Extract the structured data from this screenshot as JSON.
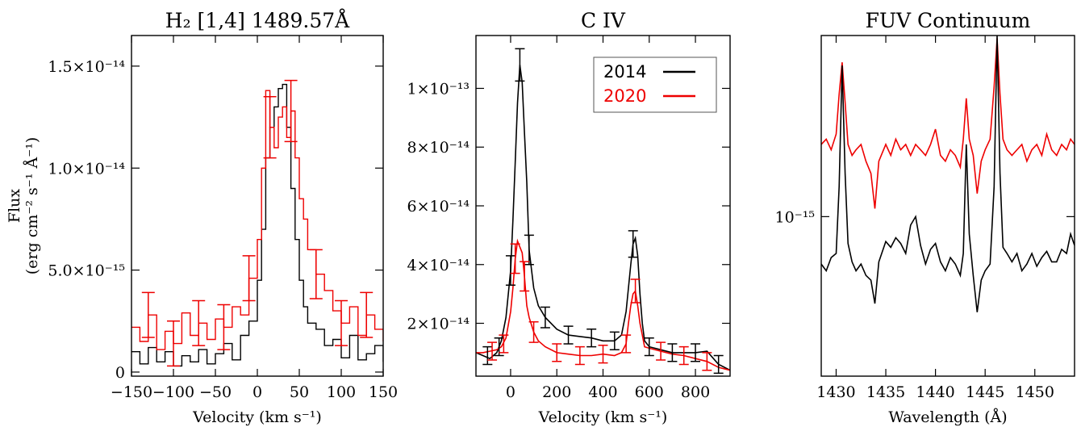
{
  "figure": {
    "ylabel_main": "Flux",
    "ylabel_units": "(erg cm⁻² s⁻¹ Å⁻¹)"
  },
  "chart_data": [
    {
      "type": "line",
      "title": "H₂ [1,4] 1489.57Å",
      "xlabel": "Velocity (km s⁻¹)",
      "ylabel": "Flux (erg cm⁻² s⁻¹ Å⁻¹)",
      "xlim": [
        -150,
        150
      ],
      "ylim": [
        -2e-16,
        1.65e-14
      ],
      "yscale": "linear",
      "xticks": [
        -150,
        -100,
        -50,
        0,
        50,
        100,
        150
      ],
      "xticklabels": [
        "−150",
        "−100",
        "−50",
        "0",
        "50",
        "100",
        "150"
      ],
      "yticks": [
        0,
        5e-15,
        1e-14,
        1.5e-14
      ],
      "yticklabels": [
        "0",
        "5.0×10⁻¹⁵",
        "1.0×10⁻¹⁴",
        "1.5×10⁻¹⁴"
      ],
      "series": [
        {
          "name": "2014",
          "color": "#000000",
          "style": "step",
          "x": [
            -150,
            -140,
            -130,
            -120,
            -110,
            -100,
            -90,
            -80,
            -70,
            -60,
            -50,
            -40,
            -30,
            -20,
            -10,
            0,
            5,
            10,
            15,
            20,
            25,
            30,
            35,
            40,
            45,
            50,
            55,
            60,
            70,
            80,
            90,
            100,
            110,
            120,
            130,
            140,
            150
          ],
          "y": [
            1e-15,
            4e-16,
            1.2e-15,
            5e-16,
            1e-15,
            3e-16,
            8e-16,
            5e-16,
            1.1e-15,
            4e-16,
            9e-16,
            1.4e-15,
            6e-16,
            1.8e-15,
            2.5e-15,
            4.5e-15,
            7e-15,
            1.05e-14,
            1.2e-14,
            1.3e-14,
            1.39e-14,
            1.41e-14,
            1.2e-14,
            9e-15,
            6.5e-15,
            4.5e-15,
            3.2e-15,
            2.4e-15,
            2.1e-15,
            1.3e-15,
            1.6e-15,
            7e-16,
            1.8e-15,
            6e-16,
            9e-16,
            1.3e-15,
            5e-16
          ]
        },
        {
          "name": "2020",
          "color": "#ee0000",
          "style": "step",
          "x": [
            -150,
            -140,
            -130,
            -120,
            -110,
            -100,
            -90,
            -80,
            -70,
            -60,
            -50,
            -40,
            -30,
            -20,
            -10,
            0,
            5,
            10,
            15,
            20,
            25,
            30,
            35,
            40,
            45,
            50,
            55,
            60,
            70,
            80,
            90,
            100,
            110,
            120,
            130,
            140,
            150
          ],
          "y": [
            2.2e-15,
            1.5e-15,
            2.8e-15,
            1.1e-15,
            2e-15,
            1.4e-15,
            2.9e-15,
            1.8e-15,
            2.4e-15,
            1.6e-15,
            2.6e-15,
            2.2e-15,
            3.2e-15,
            2.8e-15,
            4.6e-15,
            6.5e-15,
            1e-14,
            1.38e-14,
            1.2e-14,
            1.1e-14,
            1.25e-14,
            1.3e-14,
            1.15e-14,
            1.28e-14,
            1.05e-14,
            8.5e-15,
            7.5e-15,
            6e-15,
            4.8e-15,
            4e-15,
            3e-15,
            2.4e-15,
            3.2e-15,
            1.8e-15,
            2.8e-15,
            2.1e-15,
            1.5e-15
          ]
        }
      ],
      "errorbars": [
        {
          "series": "2020",
          "x": [
            -130,
            -100,
            -70,
            -40,
            -10,
            15,
            40,
            70,
            100,
            130
          ],
          "y": [
            2.8e-15,
            1.4e-15,
            2.4e-15,
            2.2e-15,
            4.6e-15,
            1.2e-14,
            1.28e-14,
            4.8e-15,
            2.4e-15,
            2.8e-15
          ],
          "err": [
            1.1e-15,
            1.1e-15,
            1.1e-15,
            1.1e-15,
            1.1e-15,
            1.5e-15,
            1.5e-15,
            1.2e-15,
            1.1e-15,
            1.1e-15
          ]
        }
      ]
    },
    {
      "type": "line",
      "title": "C IV",
      "xlabel": "Velocity (km s⁻¹)",
      "ylabel": "",
      "xlim": [
        -150,
        950
      ],
      "ylim": [
        2e-15,
        1.18e-13
      ],
      "yscale": "linear",
      "xticks": [
        0,
        200,
        400,
        600,
        800
      ],
      "xticklabels": [
        "0",
        "200",
        "400",
        "600",
        "800"
      ],
      "yticks": [
        2e-14,
        4e-14,
        6e-14,
        8e-14,
        1e-13
      ],
      "yticklabels": [
        "2×10⁻¹⁴",
        "4×10⁻¹⁴",
        "6×10⁻¹⁴",
        "8×10⁻¹⁴",
        "1×10⁻¹³"
      ],
      "legend": {
        "position": "top-right",
        "entries": [
          {
            "label": "2014",
            "color": "#000000"
          },
          {
            "label": "2020",
            "color": "#ee0000"
          }
        ]
      },
      "series": [
        {
          "name": "2014",
          "color": "#000000",
          "style": "line",
          "x": [
            -150,
            -120,
            -90,
            -60,
            -40,
            -20,
            0,
            10,
            20,
            30,
            40,
            50,
            60,
            70,
            80,
            100,
            120,
            150,
            200,
            250,
            300,
            350,
            400,
            450,
            480,
            500,
            510,
            520,
            530,
            540,
            550,
            560,
            570,
            580,
            600,
            650,
            700,
            750,
            800,
            850,
            900,
            950
          ],
          "y": [
            1e-14,
            9e-15,
            8e-15,
            1e-14,
            1.4e-14,
            2.2e-14,
            3.8e-14,
            5.5e-14,
            7.5e-14,
            9.5e-14,
            1.08e-13,
            1.02e-13,
            8.5e-14,
            6.8e-14,
            4.5e-14,
            3.2e-14,
            2.6e-14,
            2.2e-14,
            1.8e-14,
            1.6e-14,
            1.55e-14,
            1.5e-14,
            1.4e-14,
            1.4e-14,
            1.6e-14,
            2.4e-14,
            3.2e-14,
            4e-14,
            4.7e-14,
            4.9e-14,
            4.3e-14,
            3e-14,
            2e-14,
            1.4e-14,
            1.2e-14,
            1.1e-14,
            1e-14,
            1e-14,
            1e-14,
            1.05e-14,
            6e-15,
            4e-15
          ]
        },
        {
          "name": "2020",
          "color": "#ee0000",
          "style": "line",
          "x": [
            -150,
            -120,
            -90,
            -60,
            -40,
            -20,
            0,
            10,
            20,
            30,
            40,
            50,
            60,
            70,
            80,
            100,
            120,
            150,
            200,
            250,
            300,
            350,
            400,
            450,
            480,
            500,
            510,
            520,
            530,
            540,
            550,
            560,
            570,
            580,
            600,
            650,
            700,
            750,
            800,
            850,
            900,
            950
          ],
          "y": [
            1e-14,
            1e-14,
            1.05e-14,
            1.1e-14,
            1.2e-14,
            1.5e-14,
            2.4e-14,
            3.2e-14,
            4.2e-14,
            4.8e-14,
            4.6e-14,
            4.4e-14,
            3.6e-14,
            2.6e-14,
            2.2e-14,
            1.7e-14,
            1.4e-14,
            1.2e-14,
            1e-14,
            9.5e-15,
            9e-15,
            9e-15,
            9.5e-15,
            9e-15,
            1e-14,
            1.3e-14,
            2e-14,
            2.6e-14,
            3e-14,
            3.1e-14,
            2.6e-14,
            2e-14,
            1.6e-14,
            1.2e-14,
            1.15e-14,
            1.05e-14,
            9.5e-15,
            9e-15,
            8e-15,
            7e-15,
            5e-15,
            4e-15
          ]
        }
      ],
      "errorbars": [
        {
          "series": "2014",
          "x": [
            -100,
            -50,
            0,
            40,
            80,
            150,
            250,
            350,
            450,
            530,
            600,
            700,
            800,
            900
          ],
          "y": [
            9e-15,
            1.2e-14,
            3.8e-14,
            1.08e-13,
            4.5e-14,
            2.2e-14,
            1.6e-14,
            1.5e-14,
            1.4e-14,
            4.7e-14,
            1.2e-14,
            1e-14,
            1e-14,
            6e-15
          ],
          "err": [
            3e-15,
            3e-15,
            5e-15,
            5.5e-15,
            5e-15,
            3.5e-15,
            3e-15,
            3e-15,
            3e-15,
            4.5e-15,
            3e-15,
            3e-15,
            3e-15,
            3e-15
          ]
        },
        {
          "series": "2020",
          "x": [
            -80,
            -30,
            20,
            60,
            100,
            200,
            300,
            400,
            500,
            540,
            650,
            750,
            850
          ],
          "y": [
            1.05e-14,
            1.3e-14,
            4.2e-14,
            3.6e-14,
            1.7e-14,
            1e-14,
            9e-15,
            9.5e-15,
            1.3e-14,
            3.1e-14,
            1.05e-14,
            9e-15,
            7e-15
          ],
          "err": [
            3e-15,
            3e-15,
            5e-15,
            5e-15,
            3.5e-15,
            3e-15,
            3e-15,
            3e-15,
            3e-15,
            4e-15,
            3e-15,
            3e-15,
            3e-15
          ]
        }
      ]
    },
    {
      "type": "line",
      "title": "FUV Continuum",
      "xlabel": "Wavelength (Å)",
      "ylabel": "",
      "xlim": [
        1428.5,
        1454
      ],
      "ylim": [
        3.8e-16,
        3e-15
      ],
      "yscale": "log",
      "xticks": [
        1430,
        1435,
        1440,
        1445,
        1450
      ],
      "xticklabels": [
        "1430",
        "1435",
        "1440",
        "1445",
        "1450"
      ],
      "yticks": [
        1e-15
      ],
      "yticklabels": [
        "10⁻¹⁵"
      ],
      "series": [
        {
          "name": "2020",
          "color": "#ee0000",
          "style": "line",
          "x": [
            1428.5,
            1429,
            1429.5,
            1430,
            1430.3,
            1430.6,
            1430.9,
            1431.2,
            1431.6,
            1432,
            1432.5,
            1433,
            1433.5,
            1433.9,
            1434.3,
            1435,
            1435.5,
            1436,
            1436.5,
            1437,
            1437.5,
            1438,
            1438.5,
            1439,
            1439.5,
            1440,
            1440.5,
            1441,
            1441.5,
            1442,
            1442.5,
            1442.8,
            1443.1,
            1443.4,
            1443.8,
            1444.2,
            1444.6,
            1445,
            1445.5,
            1445.9,
            1446.2,
            1446.5,
            1446.8,
            1447.2,
            1447.7,
            1448.2,
            1448.7,
            1449.2,
            1449.7,
            1450.2,
            1450.7,
            1451.2,
            1451.7,
            1452.2,
            1452.7,
            1453.2,
            1453.6,
            1454
          ],
          "y": [
            1.55e-15,
            1.6e-15,
            1.5e-15,
            1.65e-15,
            2.1e-15,
            2.55e-15,
            2e-15,
            1.55e-15,
            1.45e-15,
            1.5e-15,
            1.55e-15,
            1.4e-15,
            1.3e-15,
            1.05e-15,
            1.4e-15,
            1.55e-15,
            1.45e-15,
            1.6e-15,
            1.5e-15,
            1.55e-15,
            1.45e-15,
            1.55e-15,
            1.5e-15,
            1.45e-15,
            1.55e-15,
            1.7e-15,
            1.45e-15,
            1.4e-15,
            1.5e-15,
            1.45e-15,
            1.35e-15,
            1.6e-15,
            2.05e-15,
            1.6e-15,
            1.45e-15,
            1.15e-15,
            1.4e-15,
            1.5e-15,
            1.6e-15,
            2.2e-15,
            2.95e-15,
            2.1e-15,
            1.6e-15,
            1.5e-15,
            1.45e-15,
            1.5e-15,
            1.55e-15,
            1.4e-15,
            1.5e-15,
            1.55e-15,
            1.45e-15,
            1.65e-15,
            1.5e-15,
            1.45e-15,
            1.55e-15,
            1.5e-15,
            1.6e-15,
            1.55e-15
          ]
        },
        {
          "name": "2014",
          "color": "#000000",
          "style": "line",
          "x": [
            1428.5,
            1429,
            1429.5,
            1430,
            1430.3,
            1430.6,
            1430.9,
            1431.2,
            1431.6,
            1432,
            1432.5,
            1433,
            1433.5,
            1433.9,
            1434.3,
            1435,
            1435.5,
            1436,
            1436.5,
            1437,
            1437.5,
            1438,
            1438.5,
            1439,
            1439.5,
            1440,
            1440.5,
            1441,
            1441.5,
            1442,
            1442.5,
            1442.8,
            1443.1,
            1443.4,
            1443.8,
            1444.2,
            1444.6,
            1445,
            1445.5,
            1445.9,
            1446.2,
            1446.5,
            1446.8,
            1447.2,
            1447.7,
            1448.2,
            1448.7,
            1449.2,
            1449.7,
            1450.2,
            1450.7,
            1451.2,
            1451.7,
            1452.2,
            1452.7,
            1453.2,
            1453.6,
            1454
          ],
          "y": [
            7.5e-16,
            7.2e-16,
            7.8e-16,
            8e-16,
            1.2e-15,
            2.5e-15,
            1.3e-15,
            8.5e-16,
            7.6e-16,
            7.2e-16,
            7.5e-16,
            7e-16,
            6.8e-16,
            5.9e-16,
            7.6e-16,
            8.6e-16,
            8.3e-16,
            8.8e-16,
            8.5e-16,
            8e-16,
            9.5e-16,
            1e-15,
            8.4e-16,
            7.5e-16,
            8.2e-16,
            8.5e-16,
            7.6e-16,
            7.2e-16,
            7.8e-16,
            7.5e-16,
            7e-16,
            8e-16,
            1.55e-15,
            9e-16,
            7e-16,
            5.6e-16,
            6.8e-16,
            7.2e-16,
            7.5e-16,
            1.2e-15,
            3e-15,
            1.3e-15,
            8.3e-16,
            8e-16,
            7.6e-16,
            8e-16,
            7.2e-16,
            7.5e-16,
            8e-16,
            7.4e-16,
            7.8e-16,
            8.1e-16,
            7.6e-16,
            7.6e-16,
            8.2e-16,
            8e-16,
            9e-16,
            8.4e-16
          ]
        }
      ]
    }
  ]
}
